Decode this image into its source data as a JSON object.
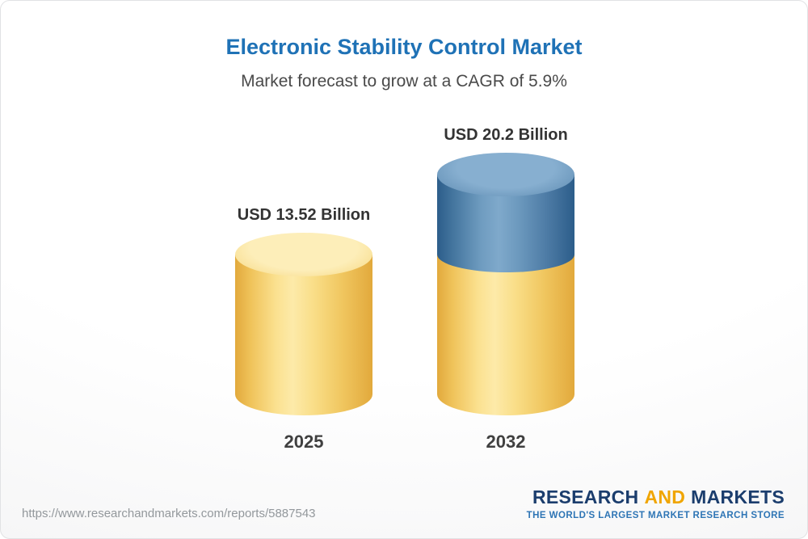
{
  "header": {
    "title": "Electronic Stability Control Market",
    "subtitle": "Market forecast to grow at a CAGR of 5.9%"
  },
  "chart_data": {
    "type": "bar",
    "variant": "3d-cylinder",
    "title": "Electronic Stability Control Market",
    "subtitle": "Market forecast to grow at a CAGR of 5.9%",
    "unit": "USD Billion",
    "cagr_percent": 5.9,
    "categories": [
      "2025",
      "2032"
    ],
    "values": [
      13.52,
      20.2
    ],
    "ylim": [
      0,
      20.2
    ],
    "grid": false,
    "legend": "none",
    "bars": [
      {
        "year": "2025",
        "label": "USD 13.52 Billion",
        "total": 13.52,
        "segments": [
          {
            "color": "gold",
            "value": 13.52
          }
        ]
      },
      {
        "year": "2032",
        "label": "USD 20.2 Billion",
        "total": 20.2,
        "segments": [
          {
            "color": "blue",
            "value": 6.68
          },
          {
            "color": "gold",
            "value": 13.52
          }
        ]
      }
    ],
    "colors": {
      "gold": "#f3c95f",
      "blue": "#4a7da9"
    }
  },
  "footer": {
    "url": "https://www.researchandmarkets.com/reports/5887543",
    "logo": {
      "research": "RESEARCH",
      "and": "AND",
      "markets": "MARKETS",
      "tagline": "THE WORLD'S LARGEST MARKET RESEARCH STORE"
    }
  }
}
